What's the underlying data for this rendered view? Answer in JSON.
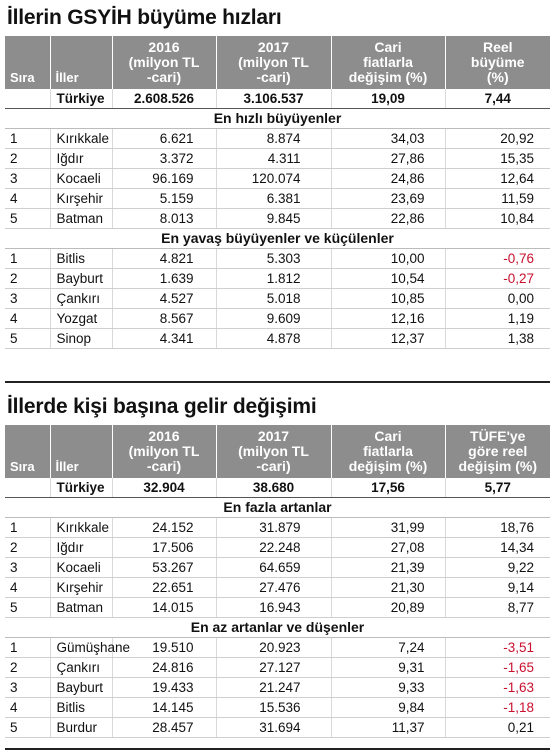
{
  "colors": {
    "header_bg": "#8d8d8d",
    "header_text": "#ffffff",
    "negative": "#c8102e"
  },
  "t1": {
    "title": "İllerin GSYİH büyüme hızları",
    "headers": {
      "rank": "Sıra",
      "name": "İller",
      "v16": [
        "2016",
        "(milyon TL",
        "-cari)"
      ],
      "v17": [
        "2017",
        "(milyon TL",
        "-cari)"
      ],
      "pct": [
        "Cari",
        "fiatlarla",
        "değişim (%)"
      ],
      "real": [
        "Reel",
        "büyüme",
        "(%)"
      ]
    },
    "total": {
      "name": "Türkiye",
      "v16": "2.608.526",
      "v17": "3.106.537",
      "pct": "19,09",
      "real": "7,44"
    },
    "groups": [
      {
        "label": "En hızlı büyüyenler",
        "rows": [
          {
            "rank": "1",
            "name": "Kırıkkale",
            "v16": "6.621",
            "v17": "8.874",
            "pct": "34,03",
            "real": "20,92"
          },
          {
            "rank": "2",
            "name": "Iğdır",
            "v16": "3.372",
            "v17": "4.311",
            "pct": "27,86",
            "real": "15,35"
          },
          {
            "rank": "3",
            "name": "Kocaeli",
            "v16": "96.169",
            "v17": "120.074",
            "pct": "24,86",
            "real": "12,64"
          },
          {
            "rank": "4",
            "name": "Kırşehir",
            "v16": "5.159",
            "v17": "6.381",
            "pct": "23,69",
            "real": "11,59"
          },
          {
            "rank": "5",
            "name": "Batman",
            "v16": "8.013",
            "v17": "9.845",
            "pct": "22,86",
            "real": "10,84"
          }
        ]
      },
      {
        "label": "En yavaş büyüyenler ve küçülenler",
        "rows": [
          {
            "rank": "1",
            "name": "Bitlis",
            "v16": "4.821",
            "v17": "5.303",
            "pct": "10,00",
            "real": "-0,76"
          },
          {
            "rank": "2",
            "name": "Bayburt",
            "v16": "1.639",
            "v17": "1.812",
            "pct": "10,54",
            "real": "-0,27"
          },
          {
            "rank": "3",
            "name": "Çankırı",
            "v16": "4.527",
            "v17": "5.018",
            "pct": "10,85",
            "real": "0,00"
          },
          {
            "rank": "4",
            "name": "Yozgat",
            "v16": "8.567",
            "v17": "9.609",
            "pct": "12,16",
            "real": "1,19"
          },
          {
            "rank": "5",
            "name": "Sinop",
            "v16": "4.341",
            "v17": "4.878",
            "pct": "12,37",
            "real": "1,38"
          }
        ]
      }
    ]
  },
  "t2": {
    "title": "İllerde kişi başına gelir değişimi",
    "headers": {
      "rank": "Sıra",
      "name": "İller",
      "v16": [
        "2016",
        "(milyon TL",
        "-cari)"
      ],
      "v17": [
        "2017",
        "(milyon TL",
        "-cari)"
      ],
      "pct": [
        "Cari",
        "fiatlarla",
        "değişim (%)"
      ],
      "real": [
        "TÜFE'ye",
        "göre reel",
        "değişim (%)"
      ]
    },
    "total": {
      "name": "Türkiye",
      "v16": "32.904",
      "v17": "38.680",
      "pct": "17,56",
      "real": "5,77"
    },
    "groups": [
      {
        "label": "En fazla artanlar",
        "rows": [
          {
            "rank": "1",
            "name": "Kırıkkale",
            "v16": "24.152",
            "v17": "31.879",
            "pct": "31,99",
            "real": "18,76"
          },
          {
            "rank": "2",
            "name": "Iğdır",
            "v16": "17.506",
            "v17": "22.248",
            "pct": "27,08",
            "real": "14,34"
          },
          {
            "rank": "3",
            "name": "Kocaeli",
            "v16": "53.267",
            "v17": "64.659",
            "pct": "21,39",
            "real": "9,22"
          },
          {
            "rank": "4",
            "name": "Kırşehir",
            "v16": "22.651",
            "v17": "27.476",
            "pct": "21,30",
            "real": "9,14"
          },
          {
            "rank": "5",
            "name": "Batman",
            "v16": "14.015",
            "v17": "16.943",
            "pct": "20,89",
            "real": "8,77"
          }
        ]
      },
      {
        "label": "En az artanlar ve düşenler",
        "rows": [
          {
            "rank": "1",
            "name": "Gümüşhane",
            "v16": "19.510",
            "v17": "20.923",
            "pct": "7,24",
            "real": "-3,51"
          },
          {
            "rank": "2",
            "name": "Çankırı",
            "v16": "24.816",
            "v17": "27.127",
            "pct": "9,31",
            "real": "-1,65"
          },
          {
            "rank": "3",
            "name": "Bayburt",
            "v16": "19.433",
            "v17": "21.247",
            "pct": "9,33",
            "real": "-1,63"
          },
          {
            "rank": "4",
            "name": "Bitlis",
            "v16": "14.145",
            "v17": "15.536",
            "pct": "9,84",
            "real": "-1,18"
          },
          {
            "rank": "5",
            "name": "Burdur",
            "v16": "28.457",
            "v17": "31.694",
            "pct": "11,37",
            "real": "0,21"
          }
        ]
      }
    ]
  }
}
